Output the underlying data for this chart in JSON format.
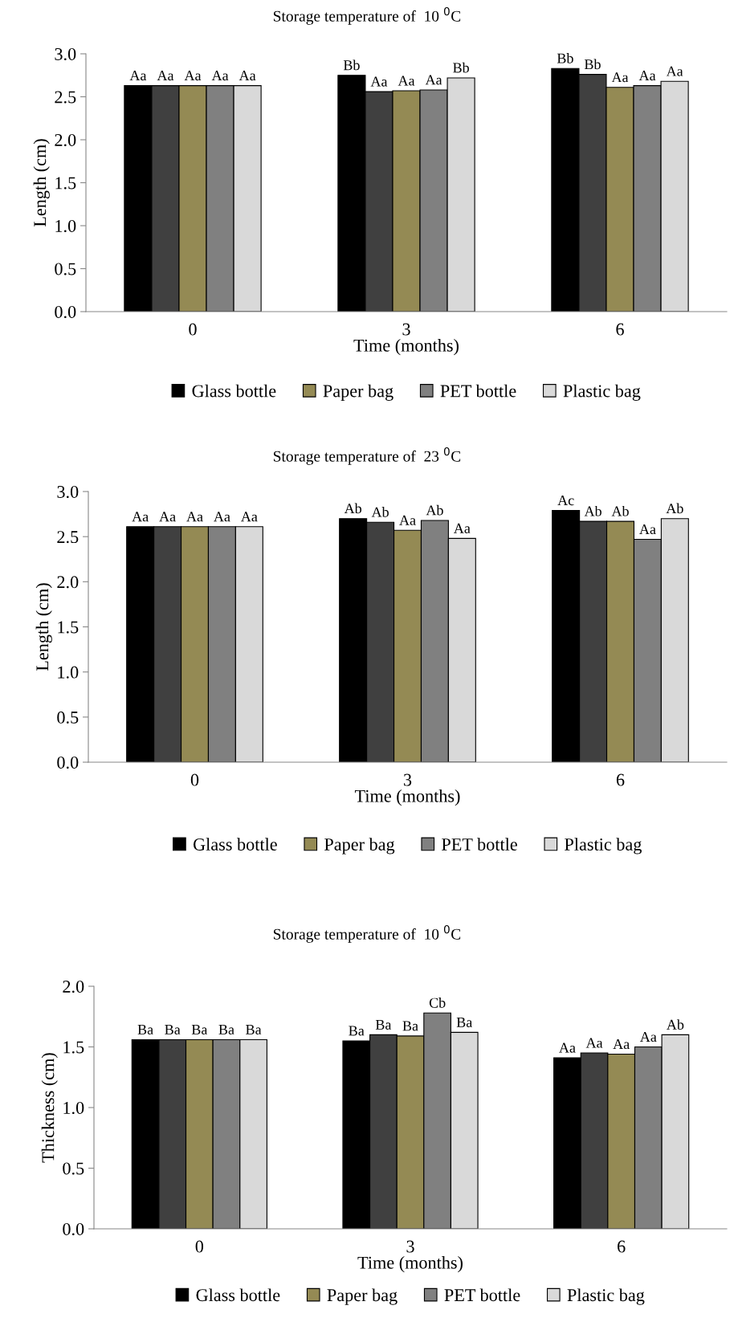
{
  "chart_data": [
    {
      "type": "bar",
      "title": "Storage temperature of  10 $^{0}$C",
      "xlabel": "Time (months)",
      "ylabel": "Length (cm)",
      "categories": [
        "0",
        "3",
        "6"
      ],
      "ylim": [
        0,
        3.0
      ],
      "yticks": [
        {
          "value": 0,
          "label": "0.0"
        },
        {
          "value": 0.5,
          "label": "0.5"
        },
        {
          "value": 1.0,
          "label": "1.0"
        },
        {
          "value": 1.5,
          "label": "1.5"
        },
        {
          "value": 2.0,
          "label": "2.0"
        },
        {
          "value": 2.5,
          "label": "2.5"
        },
        {
          "value": 3.0,
          "label": "3.0"
        }
      ],
      "legend": "bottom",
      "series": [
        {
          "name": "Glass bottle",
          "color": "#000000",
          "values": [
            2.63,
            2.75,
            2.83
          ],
          "value_labels": [
            "Aa",
            "Bb",
            "Bb"
          ]
        },
        {
          "color": "#404040",
          "values": [
            2.63,
            2.56,
            2.76
          ],
          "value_labels": [
            "Aa",
            "Aa",
            "Bb"
          ]
        },
        {
          "name": "Paper bag",
          "color": "#948a54",
          "values": [
            2.63,
            2.57,
            2.61
          ],
          "value_labels": [
            "Aa",
            "Aa",
            "Aa"
          ]
        },
        {
          "name": "PET bottle",
          "color": "#808080",
          "values": [
            2.63,
            2.58,
            2.63
          ],
          "value_labels": [
            "Aa",
            "Aa",
            "Aa"
          ]
        },
        {
          "name": "Plastic bag",
          "color": "#d9d9d9",
          "values": [
            2.63,
            2.72,
            2.68
          ],
          "value_labels": [
            "Aa",
            "Bb",
            "Aa"
          ]
        }
      ]
    },
    {
      "type": "bar",
      "title": "Storage temperature of  23 $^{0}$C",
      "xlabel": "Time (months)",
      "ylabel": "Length (cm)",
      "categories": [
        "0",
        "3",
        "6"
      ],
      "ylim": [
        0,
        3.0
      ],
      "yticks": [
        {
          "value": 0,
          "label": "0.0"
        },
        {
          "value": 0.5,
          "label": "0.5"
        },
        {
          "value": 1.0,
          "label": "1.0"
        },
        {
          "value": 1.5,
          "label": "1.5"
        },
        {
          "value": 2.0,
          "label": "2.0"
        },
        {
          "value": 2.5,
          "label": "2.5"
        },
        {
          "value": 3.0,
          "label": "3.0"
        }
      ],
      "legend": "bottom",
      "series": [
        {
          "name": "Glass bottle",
          "color": "#000000",
          "values": [
            2.61,
            2.7,
            2.79
          ],
          "value_labels": [
            "Aa",
            "Ab",
            "Ac"
          ]
        },
        {
          "color": "#404040",
          "values": [
            2.61,
            2.66,
            2.67
          ],
          "value_labels": [
            "Aa",
            "Ab",
            "Ab"
          ]
        },
        {
          "name": "Paper bag",
          "color": "#948a54",
          "values": [
            2.61,
            2.57,
            2.67
          ],
          "value_labels": [
            "Aa",
            "Aa",
            "Ab"
          ]
        },
        {
          "name": "PET bottle",
          "color": "#808080",
          "values": [
            2.61,
            2.68,
            2.47
          ],
          "value_labels": [
            "Aa",
            "Ab",
            "Aa"
          ]
        },
        {
          "name": "Plastic bag",
          "color": "#d9d9d9",
          "values": [
            2.61,
            2.48,
            2.7
          ],
          "value_labels": [
            "Aa",
            "Aa",
            "Ab"
          ]
        }
      ]
    },
    {
      "type": "bar",
      "title": "Storage temperature of  10 $^{0}$C",
      "xlabel": "Time (months)",
      "ylabel": "Thickness (cm)",
      "categories": [
        "0",
        "3",
        "6"
      ],
      "ylim": [
        0,
        2.0
      ],
      "yticks": [
        {
          "value": 0,
          "label": "0.0"
        },
        {
          "value": 0.5,
          "label": "0.5"
        },
        {
          "value": 1.0,
          "label": "1.0"
        },
        {
          "value": 1.5,
          "label": "1.5"
        },
        {
          "value": 2.0,
          "label": "2.0"
        }
      ],
      "legend": "bottom",
      "series": [
        {
          "name": "Glass bottle",
          "color": "#000000",
          "values": [
            1.56,
            1.55,
            1.41
          ],
          "value_labels": [
            "Ba",
            "Ba",
            "Aa"
          ]
        },
        {
          "color": "#404040",
          "values": [
            1.56,
            1.6,
            1.45
          ],
          "value_labels": [
            "Ba",
            "Ba",
            "Aa"
          ]
        },
        {
          "name": "Paper bag",
          "color": "#948a54",
          "values": [
            1.56,
            1.59,
            1.44
          ],
          "value_labels": [
            "Ba",
            "Ba",
            "Aa"
          ]
        },
        {
          "name": "PET bottle",
          "color": "#808080",
          "values": [
            1.56,
            1.78,
            1.5
          ],
          "value_labels": [
            "Ba",
            "Cb",
            "Aa"
          ]
        },
        {
          "name": "Plastic bag",
          "color": "#d9d9d9",
          "values": [
            1.56,
            1.62,
            1.6
          ],
          "value_labels": [
            "Ba",
            "Ba",
            "Ab"
          ]
        }
      ]
    }
  ]
}
